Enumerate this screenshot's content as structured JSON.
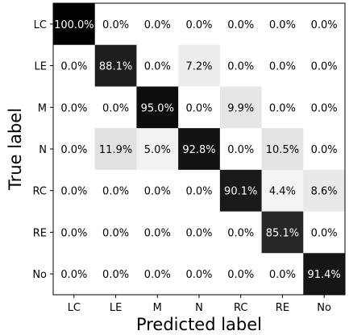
{
  "chart_data": {
    "type": "heatmap",
    "title": "",
    "xlabel": "Predicted label",
    "ylabel": "True label",
    "x_categories": [
      "LC",
      "LE",
      "M",
      "N",
      "RC",
      "RE",
      "No"
    ],
    "y_categories": [
      "LC",
      "LE",
      "M",
      "N",
      "RC",
      "RE",
      "No"
    ],
    "values": [
      [
        100.0,
        0.0,
        0.0,
        0.0,
        0.0,
        0.0,
        0.0
      ],
      [
        0.0,
        88.1,
        0.0,
        7.2,
        0.0,
        0.0,
        0.0
      ],
      [
        0.0,
        0.0,
        95.0,
        0.0,
        9.9,
        0.0,
        0.0
      ],
      [
        0.0,
        11.9,
        5.0,
        92.8,
        0.0,
        10.5,
        0.0
      ],
      [
        0.0,
        0.0,
        0.0,
        0.0,
        90.1,
        4.4,
        8.6
      ],
      [
        0.0,
        0.0,
        0.0,
        0.0,
        0.0,
        85.1,
        0.0
      ],
      [
        0.0,
        0.0,
        0.0,
        0.0,
        0.0,
        0.0,
        91.4
      ]
    ],
    "value_format": "percent",
    "colormap": "Greys",
    "vmin": 0,
    "vmax": 100,
    "grid": false
  }
}
